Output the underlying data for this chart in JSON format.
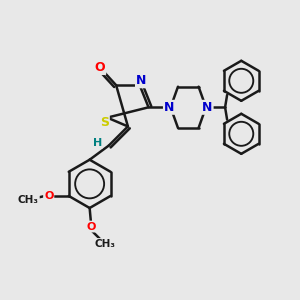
{
  "bg_color": "#e8e8e8",
  "bond_color": "#1a1a1a",
  "bond_width": 1.8,
  "atom_colors": {
    "O": "#ff0000",
    "N": "#0000cc",
    "S": "#cccc00",
    "H": "#008080",
    "C": "#1a1a1a"
  },
  "font_size": 8.5,
  "small_font": 7.5
}
